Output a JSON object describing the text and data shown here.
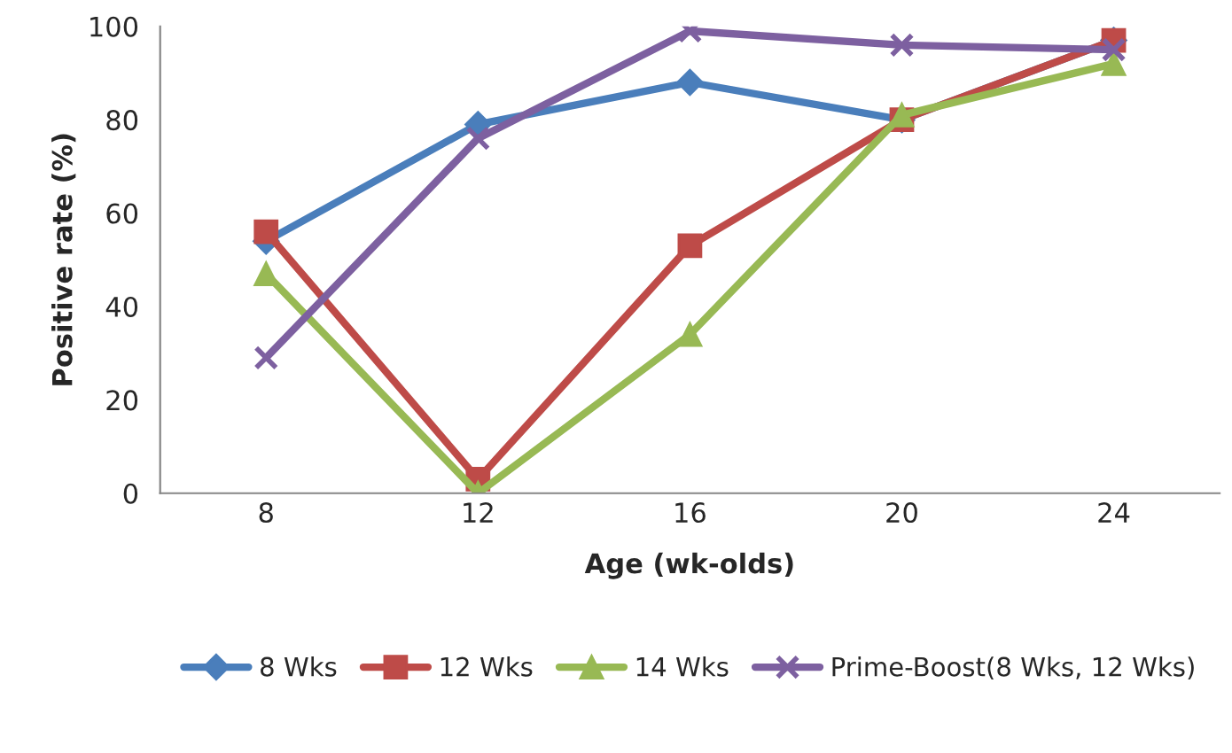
{
  "chart_data": {
    "type": "line",
    "xlabel": "Age (wk-olds)",
    "ylabel": "Positive rate (%)",
    "categories": [
      "8",
      "12",
      "16",
      "20",
      "24"
    ],
    "series": [
      {
        "name": "8 Wks",
        "color": "#4a7ebb",
        "marker": "diamond",
        "values": [
          54,
          79,
          88,
          80,
          97
        ]
      },
      {
        "name": "12 Wks",
        "color": "#be4b48",
        "marker": "square",
        "values": [
          56,
          3,
          53,
          80,
          97
        ]
      },
      {
        "name": "14 Wks",
        "color": "#98b954",
        "marker": "triangle",
        "values": [
          47,
          0,
          34,
          81,
          92
        ]
      },
      {
        "name": "Prime-Boost(8 Wks, 12 Wks)",
        "color": "#7d60a0",
        "marker": "cross",
        "values": [
          29,
          76,
          99,
          96,
          95
        ]
      }
    ],
    "ylim": [
      0,
      100
    ],
    "yticks": [
      0,
      20,
      40,
      60,
      80,
      100
    ],
    "grid": false,
    "legend": "bottom",
    "line_style": "solid"
  }
}
